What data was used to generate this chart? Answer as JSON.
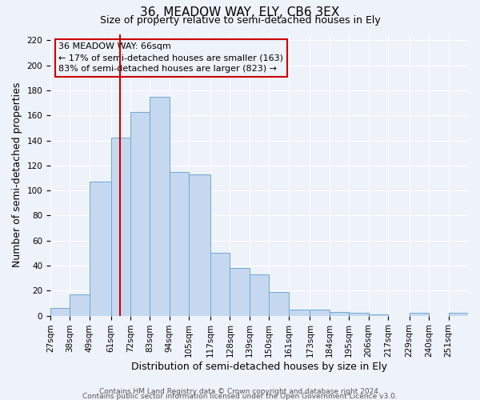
{
  "title": "36, MEADOW WAY, ELY, CB6 3EX",
  "subtitle": "Size of property relative to semi-detached houses in Ely",
  "xlabel": "Distribution of semi-detached houses by size in Ely",
  "ylabel": "Number of semi-detached properties",
  "bin_labels": [
    "27sqm",
    "38sqm",
    "49sqm",
    "61sqm",
    "72sqm",
    "83sqm",
    "94sqm",
    "105sqm",
    "117sqm",
    "128sqm",
    "139sqm",
    "150sqm",
    "161sqm",
    "173sqm",
    "184sqm",
    "195sqm",
    "206sqm",
    "217sqm",
    "229sqm",
    "240sqm",
    "251sqm"
  ],
  "bin_edges": [
    27,
    38,
    49,
    61,
    72,
    83,
    94,
    105,
    117,
    128,
    139,
    150,
    161,
    173,
    184,
    195,
    206,
    217,
    229,
    240,
    251
  ],
  "counts": [
    6,
    17,
    107,
    142,
    163,
    175,
    115,
    113,
    50,
    38,
    33,
    19,
    5,
    5,
    3,
    2,
    1,
    0,
    2,
    0,
    2
  ],
  "bar_color": "#c5d8f0",
  "bar_edge_color": "#6aaad4",
  "vline_x": 66,
  "vline_color": "#cc0000",
  "annotation_title": "36 MEADOW WAY: 66sqm",
  "annotation_line1": "← 17% of semi-detached houses are smaller (163)",
  "annotation_line2": "83% of semi-detached houses are larger (823) →",
  "annotation_box_color": "#cc0000",
  "ylim": [
    0,
    225
  ],
  "yticks": [
    0,
    20,
    40,
    60,
    80,
    100,
    120,
    140,
    160,
    180,
    200,
    220
  ],
  "footer1": "Contains HM Land Registry data © Crown copyright and database right 2024.",
  "footer2": "Contains public sector information licensed under the Open Government Licence v3.0.",
  "bg_color": "#eef2f9",
  "grid_color": "#ffffff",
  "title_fontsize": 11,
  "subtitle_fontsize": 9,
  "axis_label_fontsize": 9,
  "tick_fontsize": 7.5,
  "footer_fontsize": 6.5,
  "annotation_fontsize": 8
}
